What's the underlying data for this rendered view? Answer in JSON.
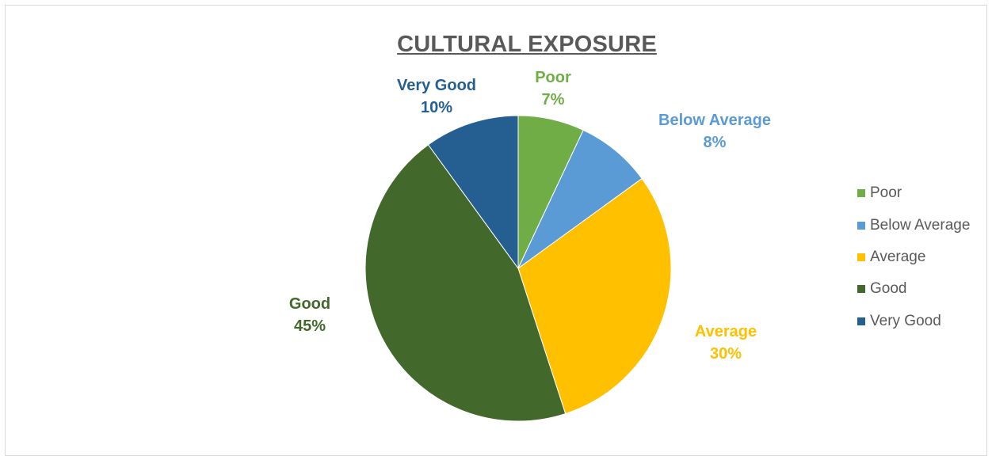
{
  "chart_data": {
    "type": "pie",
    "title": "CULTURAL EXPOSURE",
    "legend_position": "right",
    "slices": [
      {
        "name": "Poor",
        "value": 7,
        "label": "7%",
        "color": "#70ad47"
      },
      {
        "name": "Below Average",
        "value": 8,
        "label": "8%",
        "color": "#5b9bd5"
      },
      {
        "name": "Average",
        "value": 30,
        "label": "30%",
        "color": "#ffc000"
      },
      {
        "name": "Good",
        "value": 45,
        "label": "45%",
        "color": "#43682b"
      },
      {
        "name": "Very Good",
        "value": 10,
        "label": "10%",
        "color": "#255e91"
      }
    ]
  }
}
